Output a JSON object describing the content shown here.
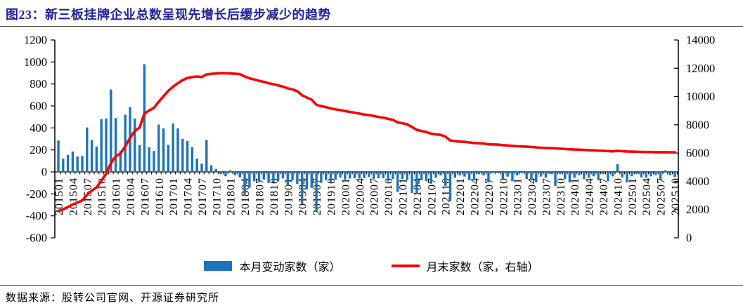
{
  "page": {
    "title": "图23：新三板挂牌企业总数呈现先增长后缓步减少的趋势",
    "source": "数据来源：股转公司官网、开源证券研究所"
  },
  "legend": {
    "bar": "本月变动家数（家）",
    "line": "月末家数（家，右轴）"
  },
  "colors": {
    "bar": "#1C74BB",
    "line": "#FB0000",
    "title": "#2020A0",
    "axis": "#000000"
  },
  "chart_data": {
    "type": "bar",
    "subtype": "bar+line dual axis, monthly 201501-202510",
    "title": "图23：新三板挂牌企业总数呈现先增长后缓步减少的趋势",
    "x_start": "201501",
    "x_end": "202510",
    "x_tick_labels": [
      "201501",
      "201504",
      "201507",
      "201510",
      "201601",
      "201604",
      "201607",
      "201610",
      "201701",
      "201704",
      "201707",
      "201710",
      "201801",
      "201804",
      "201807",
      "201810",
      "201901",
      "201904",
      "201907",
      "201910",
      "202001",
      "202004",
      "202007",
      "202010",
      "202101",
      "202104",
      "202107",
      "202110",
      "202201",
      "202204",
      "202207",
      "202210",
      "202301",
      "202304",
      "202307",
      "202310",
      "202401",
      "202404",
      "202407",
      "202410",
      "202501",
      "202504",
      "202507",
      "202510"
    ],
    "left_axis": {
      "min": -600,
      "max": 1200,
      "step": 200,
      "tick_labels": [
        "1200",
        "1000",
        "800",
        "600",
        "400",
        "200",
        "0",
        "-200",
        "-400",
        "-600"
      ]
    },
    "right_axis": {
      "min": 0,
      "max": 14000,
      "step": 2000,
      "tick_labels": [
        "14000",
        "12000",
        "10000",
        "8000",
        "6000",
        "4000",
        "2000",
        "0"
      ]
    },
    "series": [
      {
        "name": "本月变动家数（家）",
        "type": "bar",
        "axis": "left",
        "values": [
          285,
          120,
          155,
          185,
          140,
          145,
          405,
          290,
          230,
          480,
          485,
          750,
          490,
          190,
          520,
          590,
          485,
          245,
          980,
          225,
          190,
          430,
          395,
          245,
          440,
          395,
          300,
          280,
          225,
          120,
          75,
          290,
          60,
          25,
          -20,
          -40,
          15,
          -30,
          -50,
          -200,
          -145,
          -85,
          -95,
          -70,
          -100,
          -96,
          -85,
          -60,
          -128,
          -75,
          -110,
          -290,
          -160,
          -145,
          -360,
          -100,
          -75,
          -90,
          -70,
          -50,
          -70,
          -60,
          -58,
          -60,
          -57,
          -47,
          -63,
          -58,
          -59,
          -86,
          -64,
          -181,
          -64,
          -75,
          -192,
          -203,
          -75,
          -85,
          -107,
          -53,
          -32,
          -128,
          -267,
          -53,
          -32,
          -43,
          -75,
          -64,
          -21,
          -32,
          -96,
          -10,
          -12,
          -75,
          -43,
          -85,
          -32,
          -11,
          -64,
          -64,
          -96,
          -43,
          -53,
          -20,
          -128,
          -20,
          -64,
          -96,
          -53,
          -30,
          -64,
          -53,
          -40,
          -75,
          -20,
          -85,
          -40,
          70,
          -50,
          -96,
          -40,
          -20,
          -50,
          -53,
          -40,
          -30,
          -75,
          15,
          -30,
          -45
        ]
      },
      {
        "name": "月末家数（家，右轴）",
        "type": "line",
        "axis": "right",
        "values": [
          1900,
          2020,
          2175,
          2360,
          2500,
          2645,
          3050,
          3340,
          3570,
          4050,
          4535,
          5285,
          5775,
          5965,
          6485,
          7075,
          7560,
          7805,
          8785,
          9010,
          9200,
          9630,
          10025,
          10400,
          10700,
          10940,
          11160,
          11310,
          11380,
          11420,
          11380,
          11560,
          11600,
          11630,
          11650,
          11640,
          11630,
          11610,
          11580,
          11420,
          11290,
          11210,
          11110,
          11040,
          10940,
          10870,
          10790,
          10700,
          10580,
          10500,
          10380,
          10090,
          9930,
          9780,
          9420,
          9320,
          9250,
          9160,
          9090,
          9040,
          8970,
          8910,
          8850,
          8790,
          8730,
          8690,
          8620,
          8560,
          8500,
          8420,
          8350,
          8170,
          8110,
          8030,
          7840,
          7640,
          7560,
          7480,
          7370,
          7320,
          7290,
          7160,
          6890,
          6840,
          6810,
          6790,
          6750,
          6710,
          6690,
          6670,
          6620,
          6610,
          6600,
          6560,
          6540,
          6510,
          6480,
          6470,
          6450,
          6430,
          6400,
          6380,
          6360,
          6350,
          6330,
          6310,
          6290,
          6270,
          6250,
          6240,
          6220,
          6200,
          6190,
          6170,
          6160,
          6140,
          6120,
          6150,
          6130,
          6110,
          6100,
          6090,
          6080,
          6070,
          6070,
          6060,
          6050,
          6060,
          6050,
          6050
        ]
      }
    ],
    "legend_position": "bottom center",
    "grid": false
  }
}
